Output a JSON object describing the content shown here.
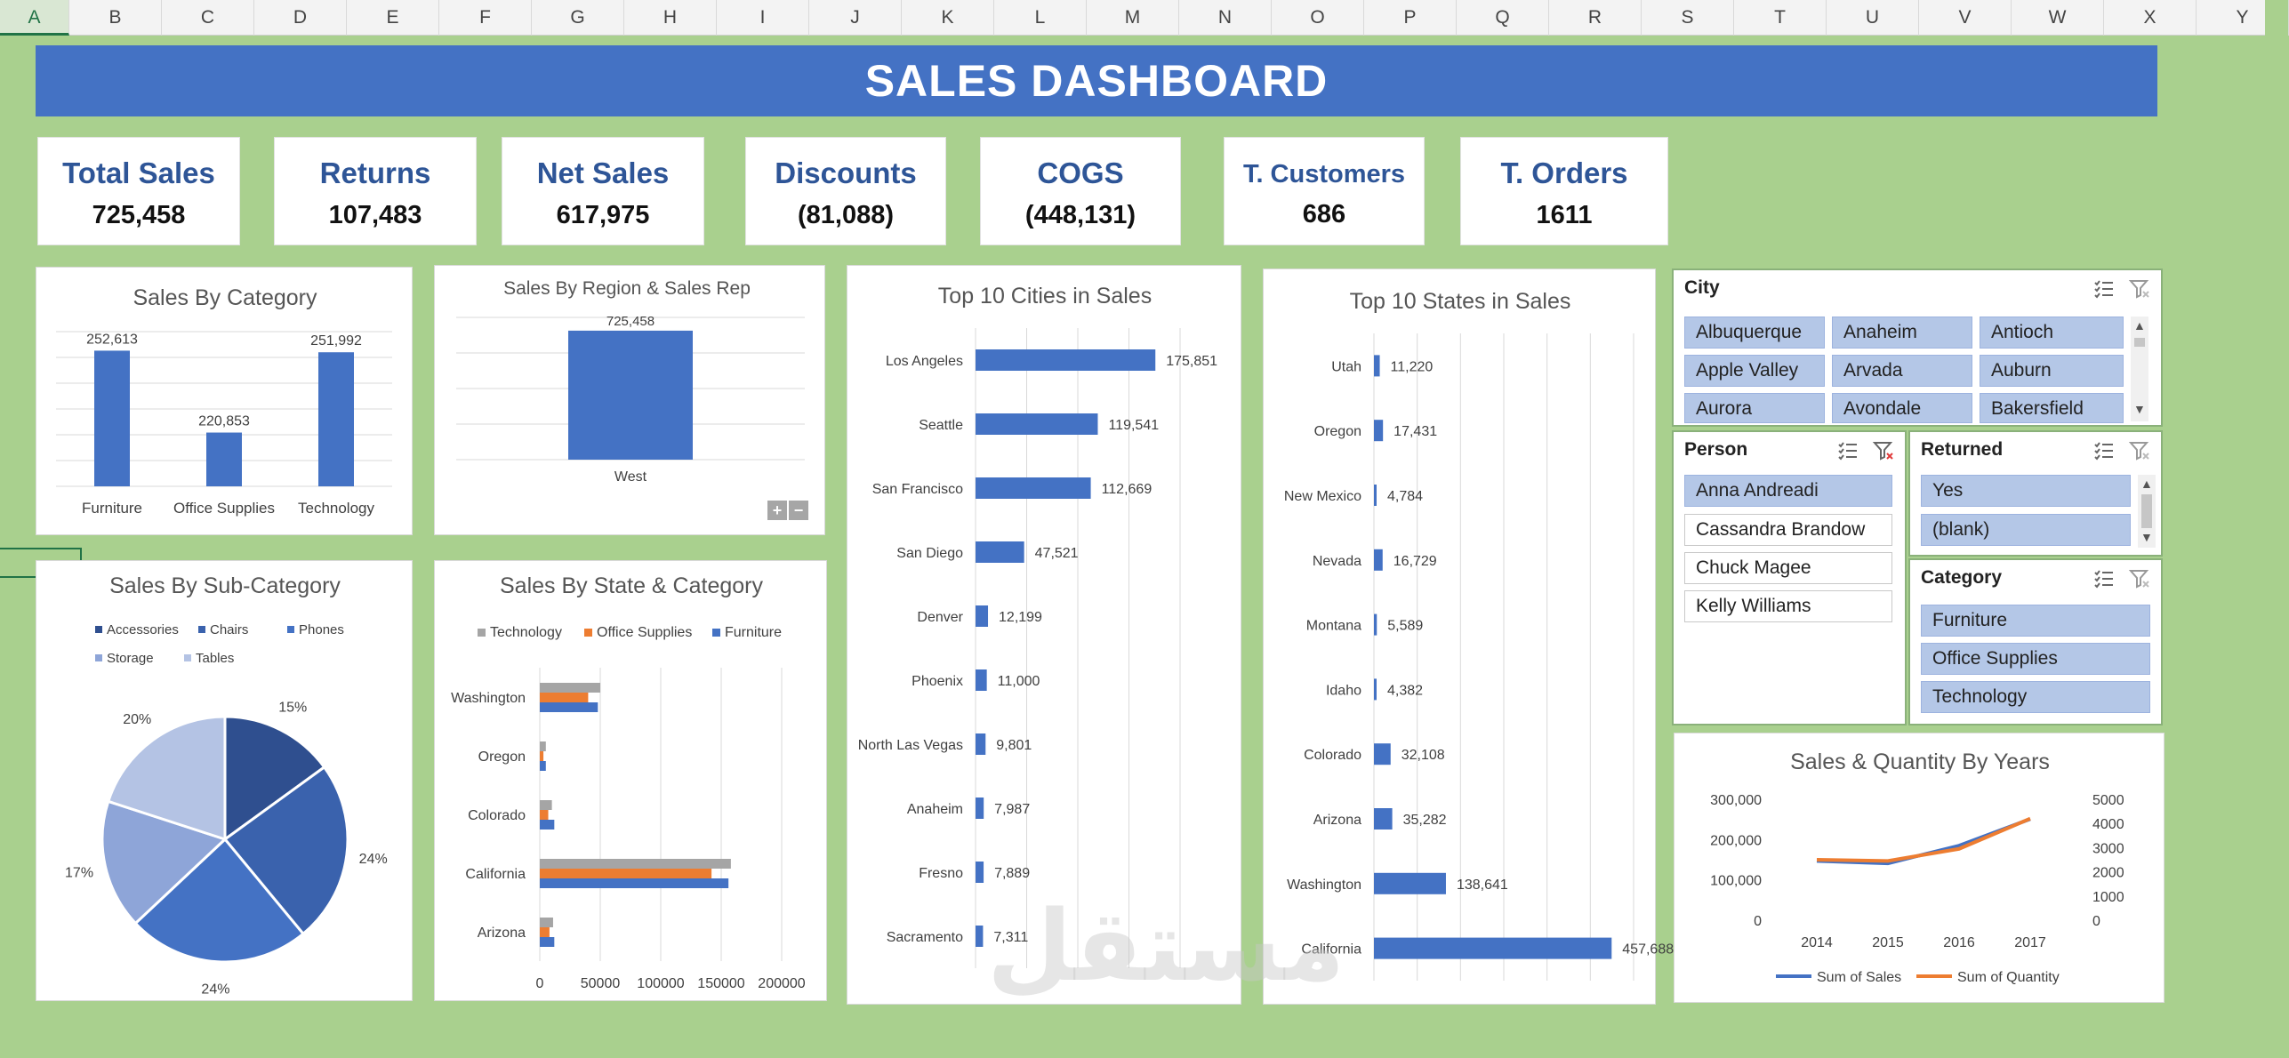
{
  "columns": [
    "A",
    "B",
    "C",
    "D",
    "E",
    "F",
    "G",
    "H",
    "I",
    "J",
    "K",
    "L",
    "M",
    "N",
    "O",
    "P",
    "Q",
    "R",
    "S",
    "T",
    "U",
    "V",
    "W",
    "X",
    "Y"
  ],
  "title": "SALES DASHBOARD",
  "kpis": [
    {
      "label": "Total Sales",
      "value": "725,458"
    },
    {
      "label": "Returns",
      "value": "107,483"
    },
    {
      "label": "Net Sales",
      "value": "617,975"
    },
    {
      "label": "Discounts",
      "value": "(81,088)"
    },
    {
      "label": "COGS",
      "value": "(448,131)"
    },
    {
      "label": "T. Customers",
      "value": "686"
    },
    {
      "label": "T. Orders",
      "value": "1611"
    }
  ],
  "slicers": {
    "city": {
      "title": "City",
      "items": [
        "Albuquerque",
        "Anaheim",
        "Antioch",
        "Apple Valley",
        "Arvada",
        "Auburn",
        "Aurora",
        "Avondale",
        "Bakersfield"
      ]
    },
    "person": {
      "title": "Person",
      "items": [
        "Anna Andreadi",
        "Cassandra Brandow",
        "Chuck Magee",
        "Kelly Williams"
      ],
      "selected": [
        0
      ]
    },
    "returned": {
      "title": "Returned",
      "items": [
        "Yes",
        "(blank)"
      ]
    },
    "category": {
      "title": "Category",
      "items": [
        "Furniture",
        "Office Supplies",
        "Technology"
      ]
    }
  },
  "zoom": {
    "plus": "+",
    "minus": "−"
  },
  "watermark": "مستقل",
  "chart_data": [
    {
      "id": "cat",
      "type": "bar",
      "title": "Sales By Category",
      "categories": [
        "Furniture",
        "Office Supplies",
        "Technology"
      ],
      "values": [
        252613,
        220853,
        251992
      ],
      "labels": [
        "252,613",
        "220,853",
        "251,992"
      ],
      "ylim": [
        200000,
        260000
      ],
      "grid": true,
      "color": "#4472c4"
    },
    {
      "id": "region",
      "type": "bar",
      "title": "Sales By Region & Sales Rep",
      "categories": [
        "West"
      ],
      "values": [
        725458
      ],
      "labels": [
        "725,458"
      ],
      "ylim": [
        0,
        800000
      ],
      "grid": true,
      "color": "#4472c4"
    },
    {
      "id": "subcat",
      "type": "pie",
      "title": "Sales By Sub-Category",
      "slices": [
        {
          "name": "Accessories",
          "value": 15,
          "label": "15%",
          "color": "#2f4f8f"
        },
        {
          "name": "Chairs",
          "value": 24,
          "label": "24%",
          "color": "#3a62ad"
        },
        {
          "name": "Phones",
          "value": 24,
          "label": "24%",
          "color": "#4472c4"
        },
        {
          "name": "Storage",
          "value": 17,
          "label": "17%",
          "color": "#8ea5d8"
        },
        {
          "name": "Tables",
          "value": 20,
          "label": "20%",
          "color": "#b4c3e4"
        }
      ],
      "legend": "top"
    },
    {
      "id": "statecat",
      "type": "bar",
      "orientation": "horizontal",
      "title": "Sales By State & Category",
      "categories": [
        "Washington",
        "Oregon",
        "Colorado",
        "California",
        "Arizona"
      ],
      "series": [
        {
          "name": "Technology",
          "color": "#a5a5a5",
          "values": [
            50000,
            5000,
            10000,
            158000,
            11000
          ]
        },
        {
          "name": "Office Supplies",
          "color": "#ed7d31",
          "values": [
            40000,
            3000,
            7000,
            142000,
            8000
          ]
        },
        {
          "name": "Furniture",
          "color": "#4472c4",
          "values": [
            48000,
            5000,
            12000,
            156000,
            12000
          ]
        }
      ],
      "xticks": [
        "0",
        "50000",
        "100000",
        "150000",
        "200000"
      ],
      "xlim": [
        0,
        200000
      ],
      "legend": "top"
    },
    {
      "id": "cities",
      "type": "bar",
      "orientation": "horizontal",
      "title": "Top 10 Cities in Sales",
      "categories": [
        "Los Angeles",
        "Seattle",
        "San Francisco",
        "San Diego",
        "Denver",
        "Phoenix",
        "North Las Vegas",
        "Anaheim",
        "Fresno",
        "Sacramento"
      ],
      "values": [
        175851,
        119541,
        112669,
        47521,
        12199,
        11000,
        9801,
        7987,
        7889,
        7311
      ],
      "labels": [
        "175,851",
        "119,541",
        "112,669",
        "47,521",
        "12,199",
        "11,000",
        "9,801",
        "7,987",
        "7,889",
        "7,311"
      ],
      "xlim": [
        0,
        200000
      ],
      "color": "#4472c4"
    },
    {
      "id": "states",
      "type": "bar",
      "orientation": "horizontal",
      "title": "Top 10 States in Sales",
      "categories": [
        "Utah",
        "Oregon",
        "New Mexico",
        "Nevada",
        "Montana",
        "Idaho",
        "Colorado",
        "Arizona",
        "Washington",
        "California"
      ],
      "values": [
        11220,
        17431,
        4784,
        16729,
        5589,
        4382,
        32108,
        35282,
        138641,
        457688
      ],
      "labels": [
        "11,220",
        "17,431",
        "4,784",
        "16,729",
        "5,589",
        "4,382",
        "32,108",
        "35,282",
        "138,641",
        "457,688"
      ],
      "xlim": [
        0,
        500000
      ],
      "color": "#4472c4"
    },
    {
      "id": "years",
      "type": "line",
      "title": "Sales & Quantity By Years",
      "x": [
        "2014",
        "2015",
        "2016",
        "2017"
      ],
      "series": [
        {
          "name": "Sum of Sales",
          "color": "#4472c4",
          "axis": "left",
          "values": [
            147000,
            141000,
            185000,
            251000
          ]
        },
        {
          "name": "Sum of Quantity",
          "color": "#ed7d31",
          "axis": "right",
          "values": [
            2500,
            2450,
            2950,
            4200
          ]
        }
      ],
      "yticks_left": [
        "300,000",
        "200,000",
        "100,000",
        "0"
      ],
      "yticks_right": [
        "5000",
        "4000",
        "3000",
        "2000",
        "1000",
        "0"
      ],
      "ylim_left": [
        0,
        300000
      ],
      "ylim_right": [
        0,
        5000
      ],
      "legend": "bottom"
    }
  ]
}
